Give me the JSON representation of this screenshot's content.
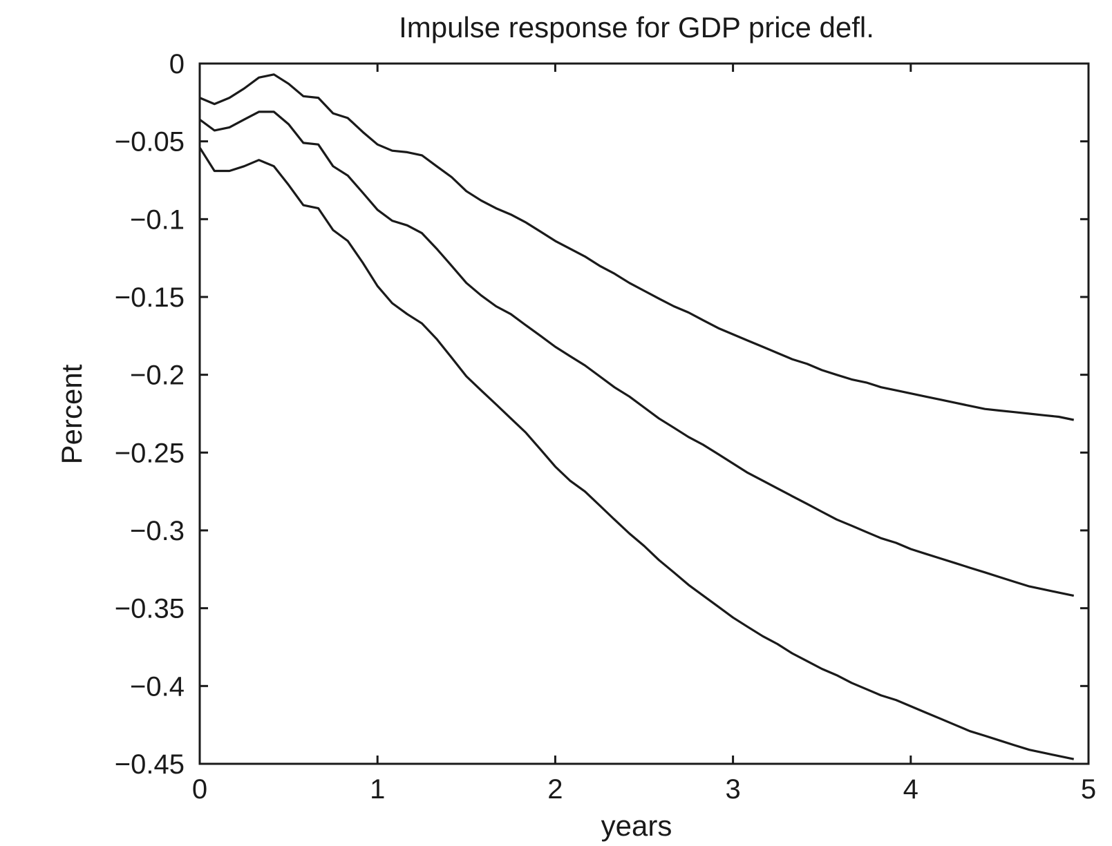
{
  "chart_data": {
    "type": "line",
    "title": "Impulse response for GDP price defl.",
    "xlabel": "years",
    "ylabel": "Percent",
    "xlim": [
      0,
      5
    ],
    "ylim": [
      -0.45,
      0
    ],
    "xticks": [
      0,
      1,
      2,
      3,
      4,
      5
    ],
    "xtick_labels": [
      "0",
      "1",
      "2",
      "3",
      "4",
      "5"
    ],
    "yticks": [
      0,
      -0.05,
      -0.1,
      -0.15,
      -0.2,
      -0.25,
      -0.3,
      -0.35,
      -0.4,
      -0.45
    ],
    "ytick_labels": [
      "0",
      "−0.05",
      "−0.1",
      "−0.15",
      "−0.2",
      "−0.25",
      "−0.3",
      "−0.35",
      "−0.4",
      "−0.45"
    ],
    "grid": false,
    "line_color": "#1a1a1a",
    "series": [
      {
        "x": [
          0,
          0.083,
          0.167,
          0.25,
          0.333,
          0.417,
          0.5,
          0.583,
          0.667,
          0.75,
          0.833,
          0.917,
          1.0,
          1.083,
          1.167,
          1.25,
          1.333,
          1.417,
          1.5,
          1.583,
          1.667,
          1.75,
          1.833,
          1.917,
          2.0,
          2.083,
          2.167,
          2.25,
          2.333,
          2.417,
          2.5,
          2.583,
          2.667,
          2.75,
          2.833,
          2.917,
          3.0,
          3.083,
          3.167,
          3.25,
          3.333,
          3.417,
          3.5,
          3.583,
          3.667,
          3.75,
          3.833,
          3.917,
          4.0,
          4.083,
          4.167,
          4.25,
          4.333,
          4.417,
          4.5,
          4.583,
          4.667,
          4.75,
          4.833,
          4.917
        ],
        "y": [
          -0.022,
          -0.026,
          -0.022,
          -0.016,
          -0.009,
          -0.007,
          -0.013,
          -0.021,
          -0.022,
          -0.032,
          -0.035,
          -0.044,
          -0.052,
          -0.056,
          -0.057,
          -0.059,
          -0.066,
          -0.073,
          -0.082,
          -0.088,
          -0.093,
          -0.097,
          -0.102,
          -0.108,
          -0.114,
          -0.119,
          -0.124,
          -0.13,
          -0.135,
          -0.141,
          -0.146,
          -0.151,
          -0.156,
          -0.16,
          -0.165,
          -0.17,
          -0.174,
          -0.178,
          -0.182,
          -0.186,
          -0.19,
          -0.193,
          -0.197,
          -0.2,
          -0.203,
          -0.205,
          -0.208,
          -0.21,
          -0.212,
          -0.214,
          -0.216,
          -0.218,
          -0.22,
          -0.222,
          -0.223,
          -0.224,
          -0.225,
          -0.226,
          -0.227,
          -0.229
        ]
      },
      {
        "x": [
          0,
          0.083,
          0.167,
          0.25,
          0.333,
          0.417,
          0.5,
          0.583,
          0.667,
          0.75,
          0.833,
          0.917,
          1.0,
          1.083,
          1.167,
          1.25,
          1.333,
          1.417,
          1.5,
          1.583,
          1.667,
          1.75,
          1.833,
          1.917,
          2.0,
          2.083,
          2.167,
          2.25,
          2.333,
          2.417,
          2.5,
          2.583,
          2.667,
          2.75,
          2.833,
          2.917,
          3.0,
          3.083,
          3.167,
          3.25,
          3.333,
          3.417,
          3.5,
          3.583,
          3.667,
          3.75,
          3.833,
          3.917,
          4.0,
          4.083,
          4.167,
          4.25,
          4.333,
          4.417,
          4.5,
          4.583,
          4.667,
          4.75,
          4.833,
          4.917
        ],
        "y": [
          -0.036,
          -0.043,
          -0.041,
          -0.036,
          -0.031,
          -0.031,
          -0.039,
          -0.051,
          -0.052,
          -0.066,
          -0.072,
          -0.083,
          -0.094,
          -0.101,
          -0.104,
          -0.109,
          -0.119,
          -0.13,
          -0.141,
          -0.149,
          -0.156,
          -0.161,
          -0.168,
          -0.175,
          -0.182,
          -0.188,
          -0.194,
          -0.201,
          -0.208,
          -0.214,
          -0.221,
          -0.228,
          -0.234,
          -0.24,
          -0.245,
          -0.251,
          -0.257,
          -0.263,
          -0.268,
          -0.273,
          -0.278,
          -0.283,
          -0.288,
          -0.293,
          -0.297,
          -0.301,
          -0.305,
          -0.308,
          -0.312,
          -0.315,
          -0.318,
          -0.321,
          -0.324,
          -0.327,
          -0.33,
          -0.333,
          -0.336,
          -0.338,
          -0.34,
          -0.342
        ]
      },
      {
        "x": [
          0,
          0.083,
          0.167,
          0.25,
          0.333,
          0.417,
          0.5,
          0.583,
          0.667,
          0.75,
          0.833,
          0.917,
          1.0,
          1.083,
          1.167,
          1.25,
          1.333,
          1.417,
          1.5,
          1.583,
          1.667,
          1.75,
          1.833,
          1.917,
          2.0,
          2.083,
          2.167,
          2.25,
          2.333,
          2.417,
          2.5,
          2.583,
          2.667,
          2.75,
          2.833,
          2.917,
          3.0,
          3.083,
          3.167,
          3.25,
          3.333,
          3.417,
          3.5,
          3.583,
          3.667,
          3.75,
          3.833,
          3.917,
          4.0,
          4.083,
          4.167,
          4.25,
          4.333,
          4.417,
          4.5,
          4.583,
          4.667,
          4.75,
          4.833,
          4.917
        ],
        "y": [
          -0.054,
          -0.069,
          -0.069,
          -0.066,
          -0.062,
          -0.066,
          -0.078,
          -0.091,
          -0.093,
          -0.107,
          -0.114,
          -0.128,
          -0.143,
          -0.154,
          -0.161,
          -0.167,
          -0.177,
          -0.189,
          -0.201,
          -0.21,
          -0.219,
          -0.228,
          -0.237,
          -0.248,
          -0.259,
          -0.268,
          -0.275,
          -0.284,
          -0.293,
          -0.302,
          -0.31,
          -0.319,
          -0.327,
          -0.335,
          -0.342,
          -0.349,
          -0.356,
          -0.362,
          -0.368,
          -0.373,
          -0.379,
          -0.384,
          -0.389,
          -0.393,
          -0.398,
          -0.402,
          -0.406,
          -0.409,
          -0.413,
          -0.417,
          -0.421,
          -0.425,
          -0.429,
          -0.432,
          -0.435,
          -0.438,
          -0.441,
          -0.443,
          -0.445,
          -0.447
        ]
      }
    ]
  }
}
